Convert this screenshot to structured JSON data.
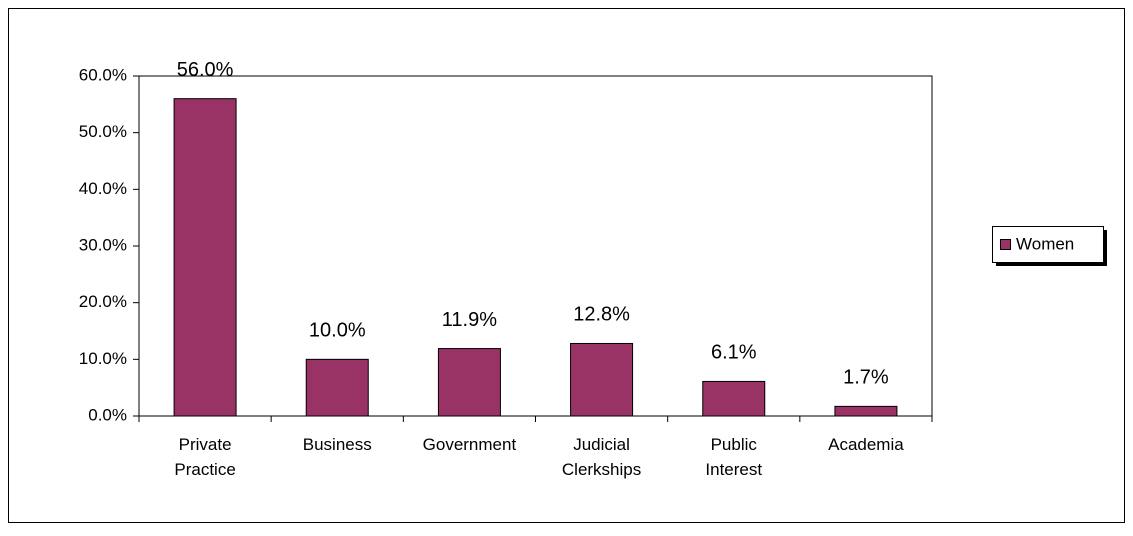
{
  "chart_data": {
    "type": "bar",
    "categories": [
      "Private Practice",
      "Business",
      "Government",
      "Judicial Clerkships",
      "Public Interest",
      "Academia"
    ],
    "series": [
      {
        "name": "Women",
        "color": "#993366",
        "values": [
          56.0,
          10.0,
          11.9,
          12.8,
          6.1,
          1.7
        ],
        "value_labels": [
          "56.0%",
          "10.0%",
          "11.9%",
          "12.8%",
          "6.1%",
          "1.7%"
        ]
      }
    ],
    "ylim": [
      0,
      60
    ],
    "yticks": [
      {
        "value": 0,
        "label": "0.0%"
      },
      {
        "value": 10,
        "label": "10.0%"
      },
      {
        "value": 20,
        "label": "20.0%"
      },
      {
        "value": 30,
        "label": "30.0%"
      },
      {
        "value": 40,
        "label": "40.0%"
      },
      {
        "value": 50,
        "label": "50.0%"
      },
      {
        "value": 60,
        "label": "60.0%"
      }
    ],
    "legend": "right"
  }
}
